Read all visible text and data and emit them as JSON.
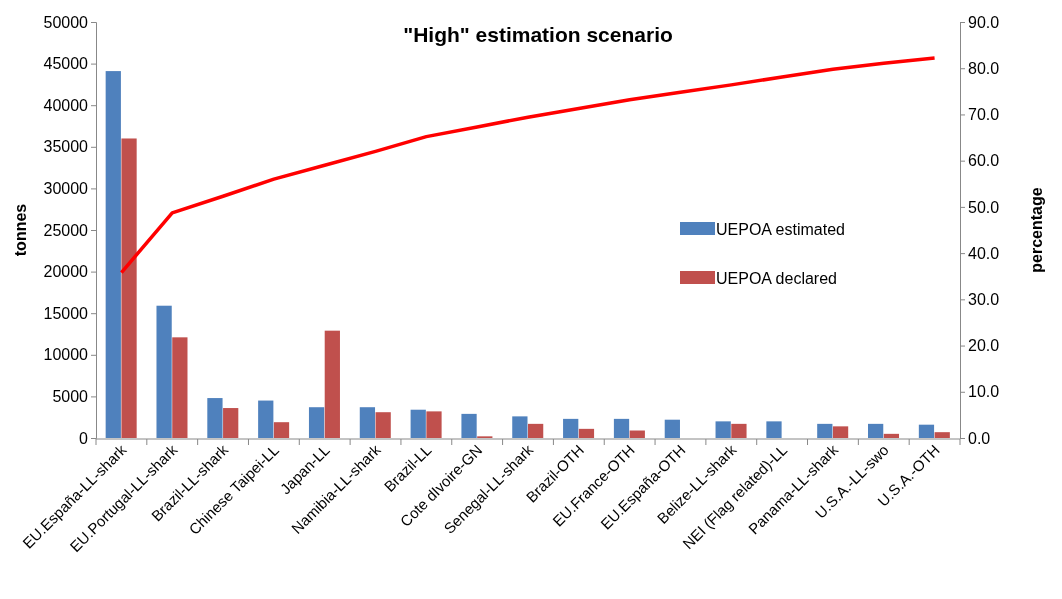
{
  "chart_data": {
    "type": "bar",
    "title": "\"High\" estimation scenario",
    "ylabel": "tonnes",
    "y2label": "percentage",
    "categories": [
      "EU.España-LL-shark",
      "EU.Portugal-LL-shark",
      "Brazil-LL-shark",
      "Chinese Taipei-LL",
      "Japan-LL",
      "Namibia-LL-shark",
      "Brazil-LL",
      "Cote dIvoire-GN",
      "Senegal-LL-shark",
      "Brazil-OTH",
      "EU.France-OTH",
      "EU.España-OTH",
      "Belize-LL-shark",
      "NEI (Flag related)-LL",
      "Panama-LL-shark",
      "U.S.A.-LL-swo",
      "U.S.A.-OTH"
    ],
    "series": [
      {
        "name": "UEPOA estimated",
        "color": "#4f81bd",
        "values": [
          44100,
          15900,
          4800,
          4500,
          3700,
          3700,
          3400,
          2900,
          2600,
          2300,
          2300,
          2200,
          2000,
          2000,
          1700,
          1700,
          1600
        ]
      },
      {
        "name": "UEPOA declared",
        "color": "#c0504d",
        "values": [
          36000,
          12100,
          3600,
          1900,
          12900,
          3100,
          3200,
          200,
          1700,
          1100,
          900,
          null,
          1700,
          null,
          1400,
          500,
          700
        ]
      },
      {
        "type": "line",
        "axis": "y2",
        "color": "#ff0000",
        "values": [
          35.8,
          48.7,
          52.3,
          56.0,
          59.0,
          62.0,
          65.2,
          67.3,
          69.4,
          71.3,
          73.2,
          74.8,
          76.4,
          78.1,
          79.8,
          81.1,
          82.2
        ]
      }
    ],
    "ylim": [
      0,
      50000
    ],
    "yticks": [
      0,
      5000,
      10000,
      15000,
      20000,
      25000,
      30000,
      35000,
      40000,
      45000,
      50000
    ],
    "y2lim": [
      0,
      90
    ],
    "y2ticks": [
      {
        "value": 0,
        "label": "0.0"
      },
      {
        "value": 10,
        "label": "10.0"
      },
      {
        "value": 20,
        "label": "20.0"
      },
      {
        "value": 30,
        "label": "30.0"
      },
      {
        "value": 40,
        "label": "40.0"
      },
      {
        "value": 50,
        "label": "50.0"
      },
      {
        "value": 60,
        "label": "60.0"
      },
      {
        "value": 70,
        "label": "70.0"
      },
      {
        "value": 80,
        "label": "80.0"
      },
      {
        "value": 90,
        "label": "90.0"
      }
    ],
    "grid": false,
    "legend": "right",
    "marker": "none",
    "line_style": "solid"
  }
}
